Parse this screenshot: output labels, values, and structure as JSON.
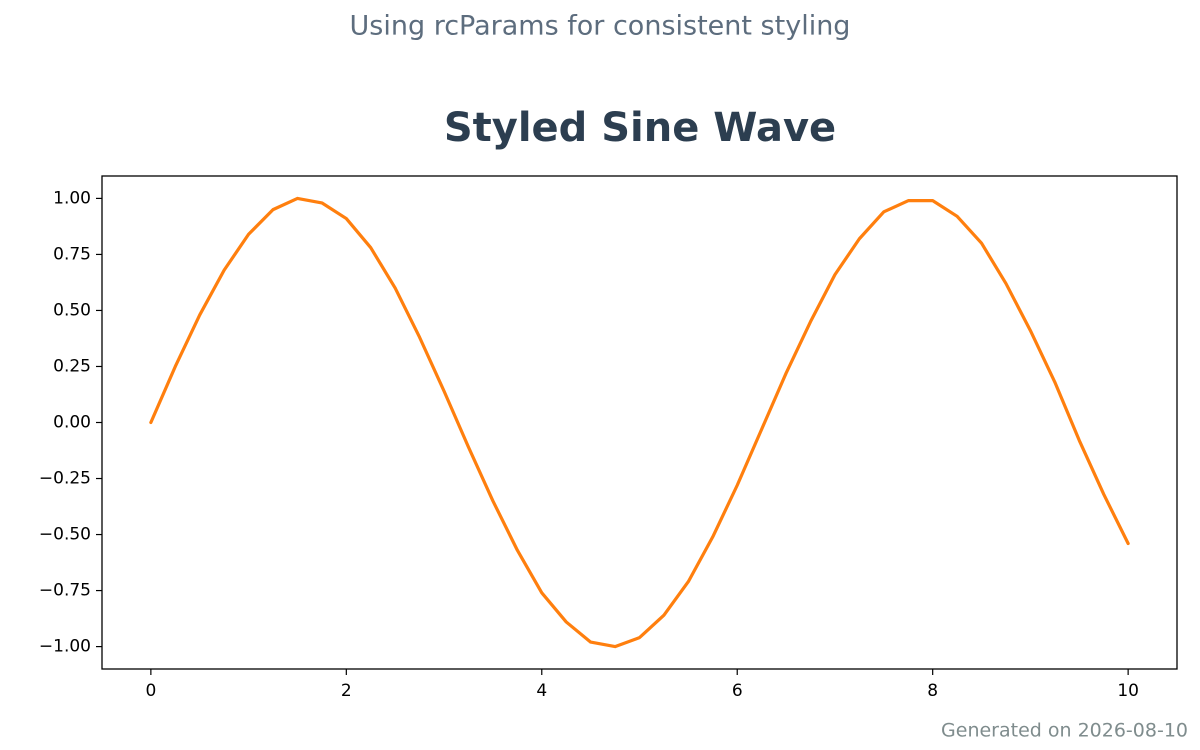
{
  "chart_data": {
    "type": "line",
    "subtitle": "Using rcParams for consistent styling",
    "title": "Styled Sine Wave",
    "footnote": "Generated on 2026-08-10",
    "color": "#ff7f0e",
    "x": [
      0,
      0.25,
      0.5,
      0.75,
      1,
      1.25,
      1.5,
      1.75,
      2,
      2.25,
      2.5,
      2.75,
      3,
      3.25,
      3.5,
      3.75,
      4,
      4.25,
      4.5,
      4.75,
      5,
      5.25,
      5.5,
      5.75,
      6,
      6.25,
      6.5,
      6.75,
      7,
      7.25,
      7.5,
      7.75,
      8,
      8.25,
      8.5,
      8.75,
      9,
      9.25,
      9.5,
      9.75,
      10
    ],
    "values": [
      0,
      0.25,
      0.48,
      0.68,
      0.84,
      0.95,
      1.0,
      0.98,
      0.91,
      0.78,
      0.6,
      0.38,
      0.14,
      -0.11,
      -0.35,
      -0.57,
      -0.76,
      -0.89,
      -0.98,
      -1.0,
      -0.96,
      -0.86,
      -0.71,
      -0.51,
      -0.28,
      -0.03,
      0.22,
      0.45,
      0.66,
      0.82,
      0.94,
      0.99,
      0.99,
      0.92,
      0.8,
      0.62,
      0.41,
      0.18,
      -0.08,
      -0.32,
      -0.54
    ],
    "xlim": [
      -0.5,
      10.5
    ],
    "ylim": [
      -1.1,
      1.1
    ],
    "xticks": [
      0,
      2,
      4,
      6,
      8,
      10
    ],
    "yticks": [
      {
        "value": -1,
        "label": "−1.00"
      },
      {
        "value": -0.75,
        "label": "−0.75"
      },
      {
        "value": -0.5,
        "label": "−0.50"
      },
      {
        "value": -0.25,
        "label": "−0.25"
      },
      {
        "value": 0,
        "label": "0.00"
      },
      {
        "value": 0.25,
        "label": "0.25"
      },
      {
        "value": 0.5,
        "label": "0.50"
      },
      {
        "value": 0.75,
        "label": "0.75"
      },
      {
        "value": 1,
        "label": "1.00"
      }
    ],
    "grid": false
  }
}
